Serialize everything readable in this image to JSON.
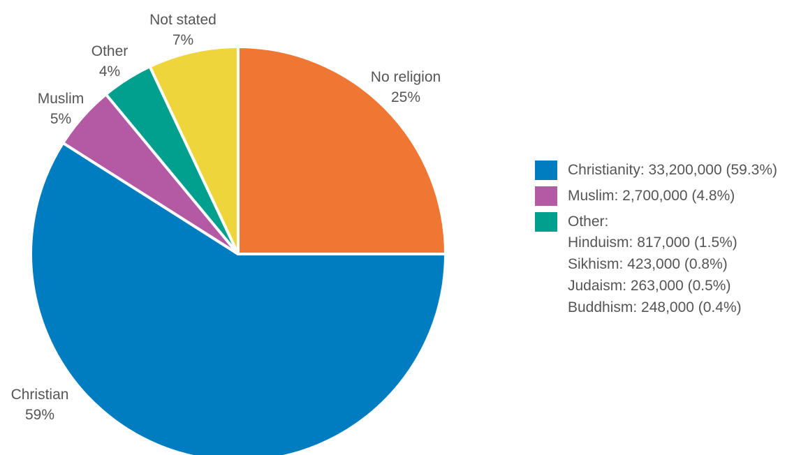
{
  "chart_data": {
    "type": "pie",
    "slices": [
      {
        "label": "No religion",
        "value": 25,
        "value_label": "25%",
        "color": "#F07733"
      },
      {
        "label": "Christian",
        "value": 59,
        "value_label": "59%",
        "color": "#007DC1"
      },
      {
        "label": "Muslim",
        "value": 5,
        "value_label": "5%",
        "color": "#B45AA5"
      },
      {
        "label": "Other",
        "value": 4,
        "value_label": "4%",
        "color": "#009F8E"
      },
      {
        "label": "Not stated",
        "value": 7,
        "value_label": "7%",
        "color": "#EED53C"
      }
    ],
    "legend": {
      "placement": "right",
      "items": [
        {
          "text": "Christianity: 33,200,000 (59.3%)",
          "color": "#007DC1"
        },
        {
          "text": "Muslim: 2,700,000 (4.8%)",
          "color": "#B45AA5"
        },
        {
          "text": "Other:",
          "color": "#009F8E"
        }
      ],
      "other_breakdown": [
        "Hinduism: 817,000 (1.5%)",
        "Sikhism: 423,000 (0.8%)",
        "Judaism: 263,000 (0.5%)",
        "Buddhism: 248,000 (0.4%)"
      ]
    }
  }
}
